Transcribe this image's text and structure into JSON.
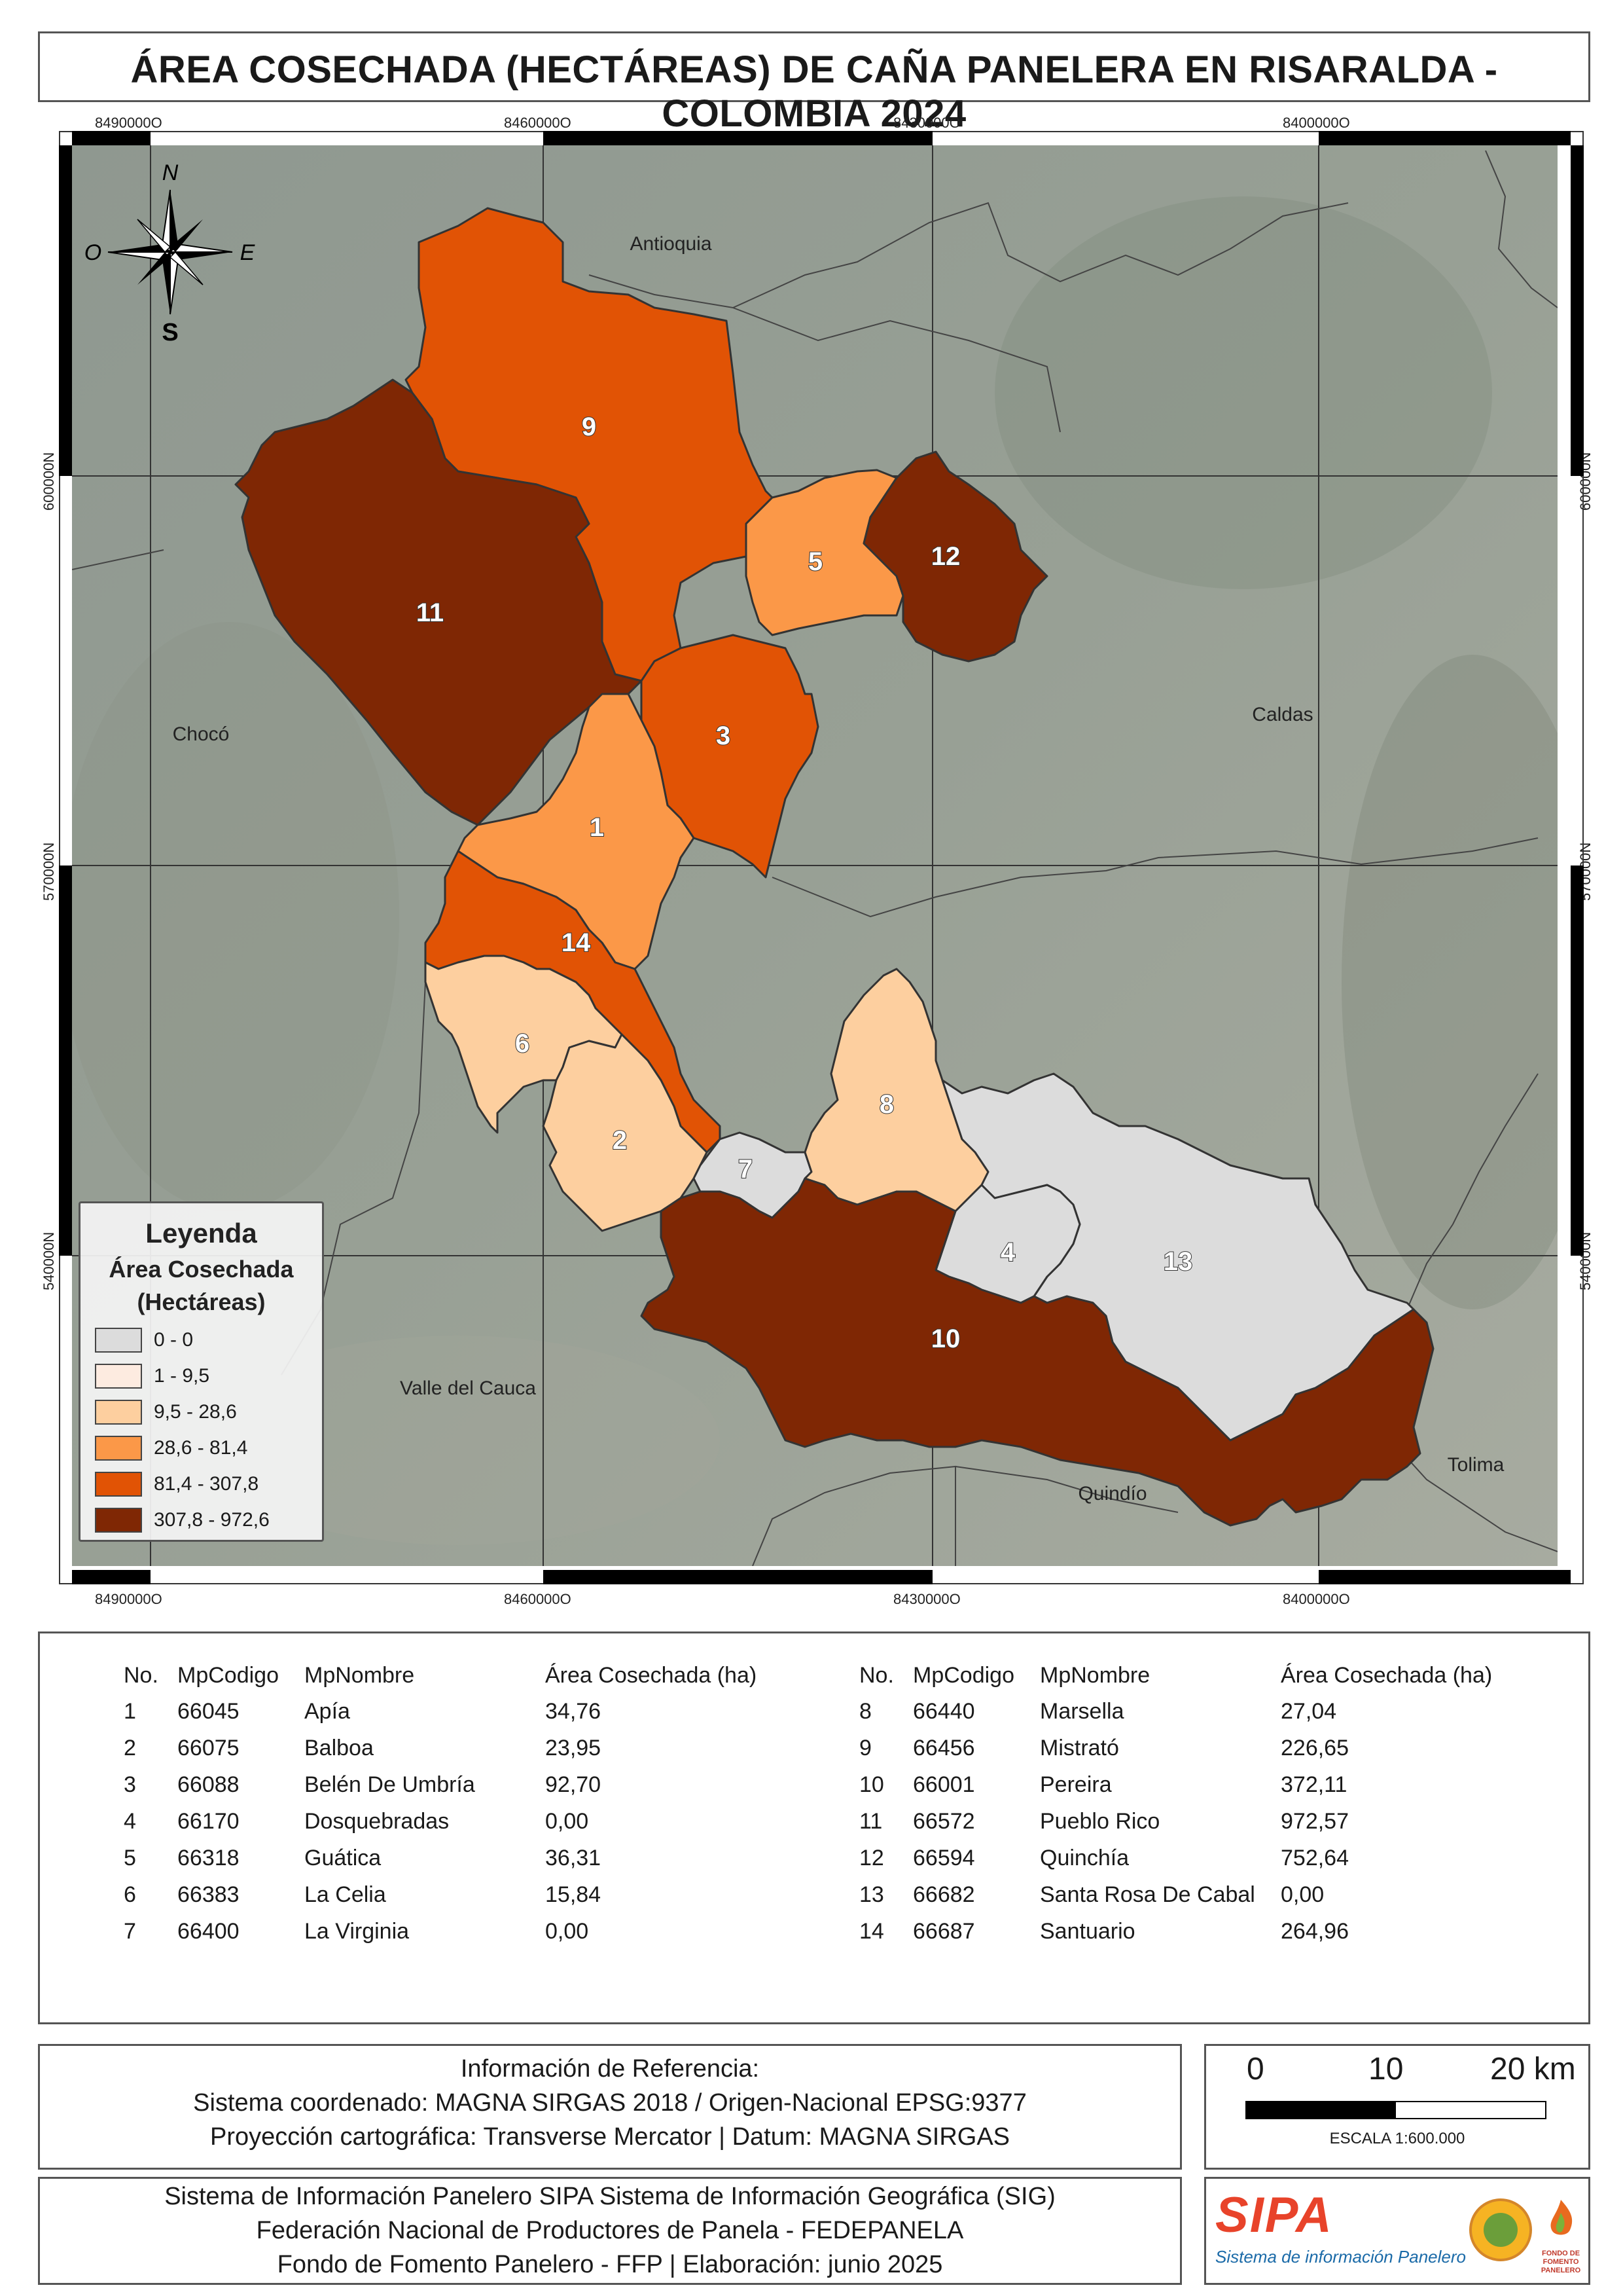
{
  "title": "ÁREA COSECHADA (HECTÁREAS) DE CAÑA PANELERA EN RISARALDA - COLOMBIA 2024",
  "coords": {
    "top": [
      "8490000O",
      "8460000O",
      "8430000O",
      "8400000O"
    ],
    "bottom": [
      "8490000O",
      "8460000O",
      "8430000O",
      "8400000O"
    ],
    "left": [
      "600000N",
      "570000N",
      "540000N"
    ],
    "right": [
      "600000N",
      "570000N",
      "540000N"
    ]
  },
  "compass": {
    "n": "N",
    "s": "S",
    "e": "E",
    "o": "O"
  },
  "places": {
    "antioquia": "Antioquia",
    "choco": "Chocó",
    "caldas": "Caldas",
    "valle": "Valle del Cauca",
    "quindio": "Quindío",
    "tolima": "Tolima"
  },
  "map_labels": [
    "1",
    "2",
    "3",
    "4",
    "5",
    "6",
    "7",
    "8",
    "9",
    "10",
    "11",
    "12",
    "13",
    "14"
  ],
  "legend": {
    "title": "Leyenda",
    "subtitle": "Área Cosechada",
    "unit": "(Hectáreas)",
    "classes": [
      {
        "label": "0 - 0",
        "color": "#dcdcdc"
      },
      {
        "label": "1 - 9,5",
        "color": "#fdebe0"
      },
      {
        "label": "9,5 - 28,6",
        "color": "#fdcf9f"
      },
      {
        "label": "28,6 - 81,4",
        "color": "#fb9848"
      },
      {
        "label": "81,4 - 307,8",
        "color": "#e15305"
      },
      {
        "label": "307,8 - 972,6",
        "color": "#7f2704"
      }
    ]
  },
  "table": {
    "headers": [
      "No.",
      "MpCodigo",
      "MpNombre",
      "Área Cosechada (ha)"
    ],
    "left_rows": [
      [
        "1",
        "66045",
        "Apía",
        "34,76"
      ],
      [
        "2",
        "66075",
        "Balboa",
        "23,95"
      ],
      [
        "3",
        "66088",
        "Belén De Umbría",
        "92,70"
      ],
      [
        "4",
        "66170",
        "Dosquebradas",
        "0,00"
      ],
      [
        "5",
        "66318",
        "Guática",
        "36,31"
      ],
      [
        "6",
        "66383",
        "La Celia",
        "15,84"
      ],
      [
        "7",
        "66400",
        "La Virginia",
        "0,00"
      ]
    ],
    "right_rows": [
      [
        "8",
        "66440",
        "Marsella",
        "27,04"
      ],
      [
        "9",
        "66456",
        "Mistrató",
        "226,65"
      ],
      [
        "10",
        "66001",
        "Pereira",
        "372,11"
      ],
      [
        "11",
        "66572",
        "Pueblo Rico",
        "972,57"
      ],
      [
        "12",
        "66594",
        "Quinchía",
        "752,64"
      ],
      [
        "13",
        "66682",
        "Santa Rosa De Cabal",
        "0,00"
      ],
      [
        "14",
        "66687",
        "Santuario",
        "264,96"
      ]
    ]
  },
  "reference": {
    "line1": "Información de Referencia:",
    "line2": "Sistema coordenado: MAGNA SIRGAS 2018 / Origen-Nacional EPSG:9377",
    "line3": "Proyección cartográfica: Transverse Mercator | Datum: MAGNA SIRGAS"
  },
  "scale": {
    "ticks": [
      "0",
      "10",
      "20 km"
    ],
    "label": "ESCALA 1:600.000"
  },
  "credits": {
    "line1": "Sistema de Información Panelero SIPA  Sistema de Información Geográfica (SIG)",
    "line2": "Federación Nacional de Productores de Panela - FEDEPANELA",
    "line3": "Fondo de Fomento Panelero - FFP |  Elaboración: junio 2025"
  },
  "logo": {
    "brand": "SIPA",
    "tagline": "Sistema de información Panelero",
    "ffp_caption": "FONDO DE FOMENTO PANELERO"
  }
}
